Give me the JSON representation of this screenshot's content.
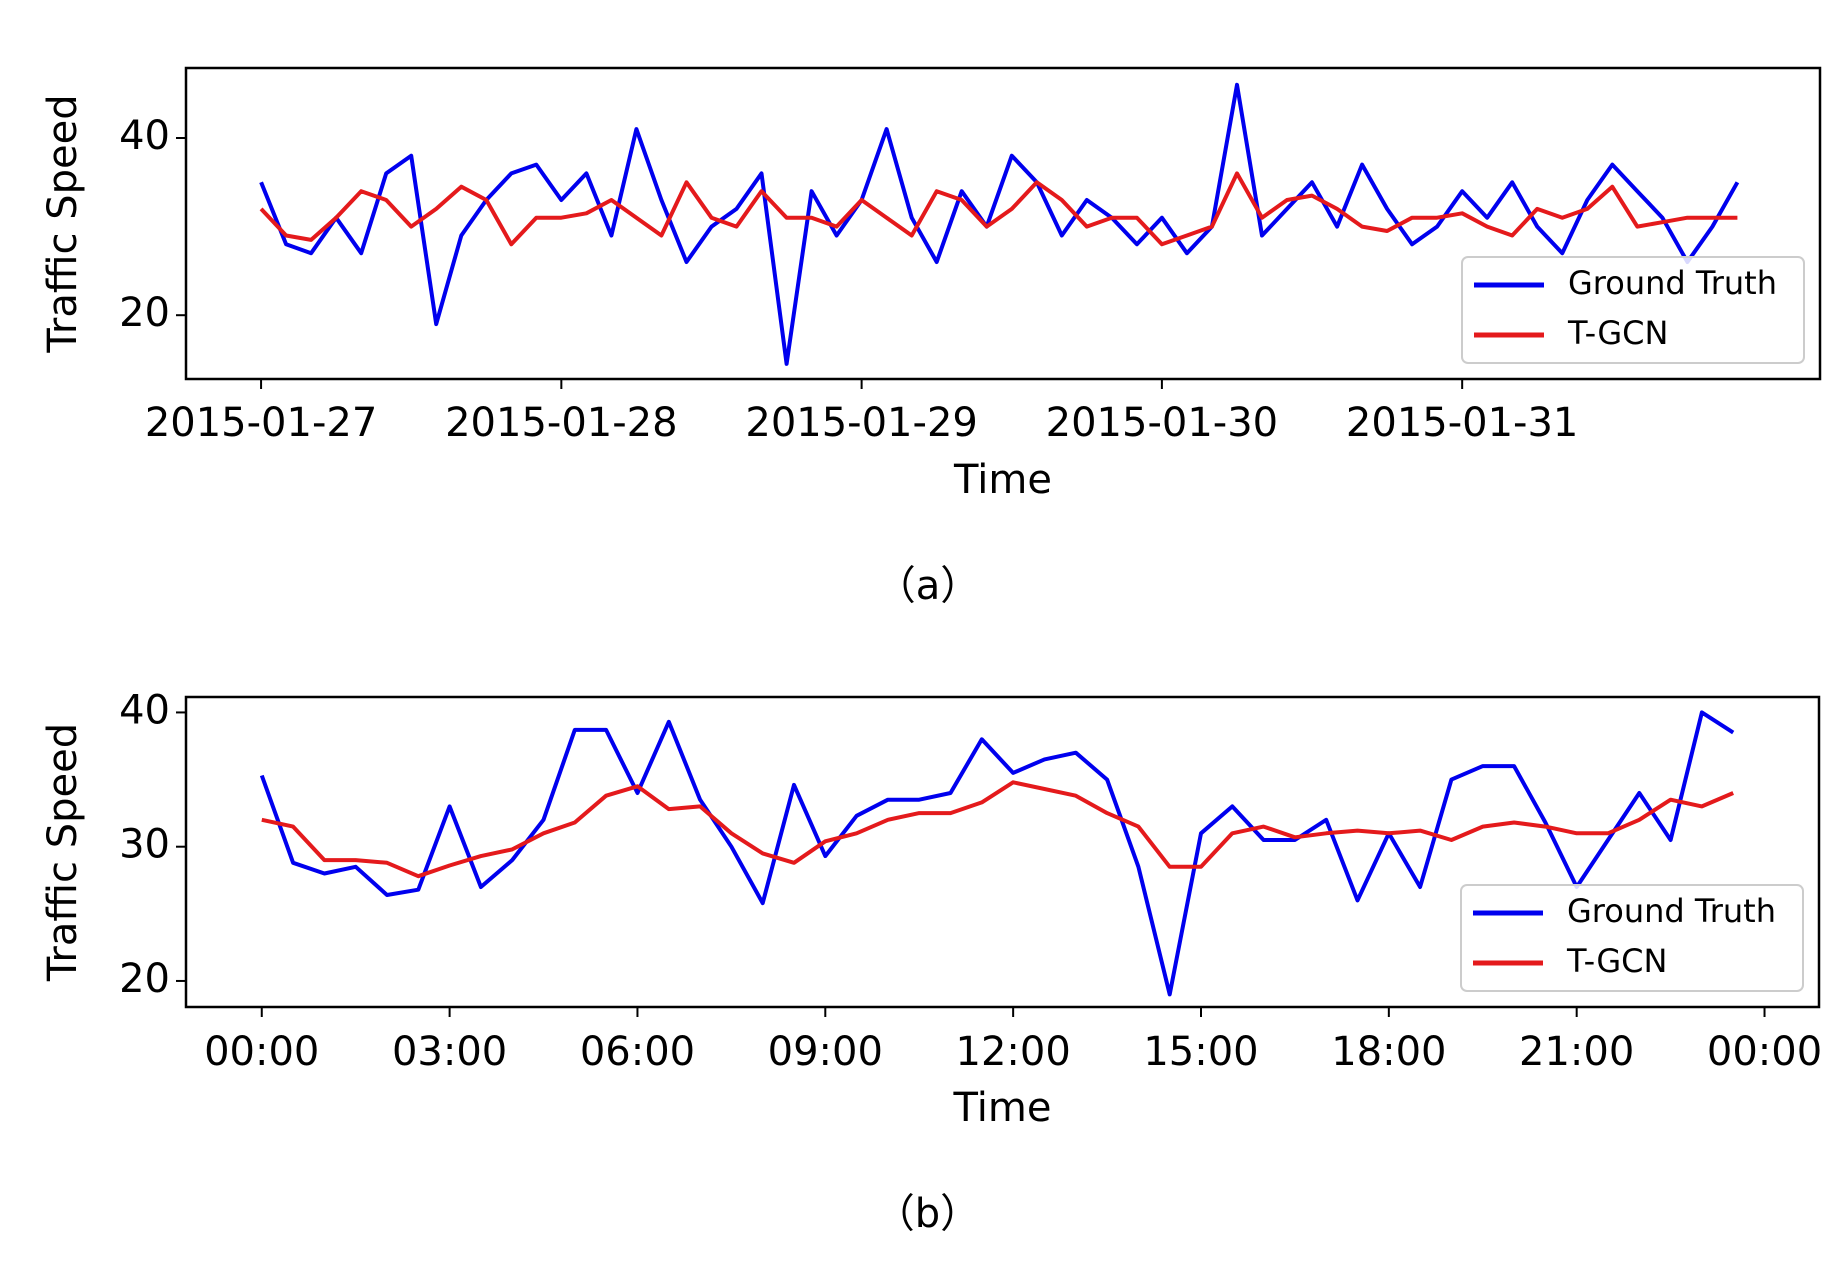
{
  "chart_data": [
    {
      "type": "line",
      "caption": "（a）",
      "xlabel": "Time",
      "ylabel": "Traffic Speed",
      "x": [
        0,
        2,
        4,
        6,
        8,
        10,
        12,
        14,
        16,
        18,
        20,
        22,
        24,
        26,
        28,
        30,
        32,
        34,
        36,
        38,
        40,
        42,
        44,
        46,
        48,
        50,
        52,
        54,
        56,
        58,
        60,
        62,
        64,
        66,
        68,
        70,
        72,
        74,
        76,
        78,
        80,
        82,
        84,
        86,
        88,
        90,
        92,
        94,
        96,
        98,
        100,
        102,
        104,
        106,
        108,
        110,
        112,
        114,
        116,
        118
      ],
      "series": [
        {
          "name": "Ground Truth",
          "color": "#0000ee",
          "values": [
            35,
            28,
            27,
            31,
            27,
            36,
            38,
            19,
            29,
            33,
            36,
            37,
            33,
            36,
            29,
            41,
            33,
            26,
            30,
            32,
            36,
            14.5,
            34,
            29,
            33,
            41,
            31,
            26,
            34,
            30,
            38,
            35,
            29,
            33,
            31,
            28,
            31,
            27,
            30,
            46,
            29,
            32,
            35,
            30,
            37,
            32,
            28,
            30,
            34,
            31,
            35,
            30,
            27,
            33,
            37,
            34,
            31,
            26,
            30,
            35
          ]
        },
        {
          "name": "T-GCN",
          "color": "#e41a1c",
          "values": [
            32,
            29,
            28.5,
            31,
            34,
            33,
            30,
            32,
            34.5,
            33,
            28,
            31,
            31,
            31.5,
            33,
            31,
            29,
            35,
            31,
            30,
            34,
            31,
            31,
            30,
            33,
            31,
            29,
            34,
            33,
            30,
            32,
            35,
            33,
            30,
            31,
            31,
            28,
            29,
            30,
            36,
            31,
            33,
            33.5,
            32,
            30,
            29.5,
            31,
            31,
            31.5,
            30,
            29,
            32,
            31,
            32,
            34.5,
            30,
            30.5,
            31,
            31,
            31
          ]
        }
      ],
      "xlim": [
        -6,
        124.6
      ],
      "xticks": [
        {
          "value": 0,
          "label": "2015-01-27"
        },
        {
          "value": 24,
          "label": "2015-01-28"
        },
        {
          "value": 48,
          "label": "2015-01-29"
        },
        {
          "value": 72,
          "label": "2015-01-30"
        },
        {
          "value": 96,
          "label": "2015-01-31"
        }
      ],
      "ylim": [
        12.8,
        47.9
      ],
      "yticks": [
        20,
        40
      ],
      "legend": "lower right"
    },
    {
      "type": "line",
      "caption": "（b）",
      "xlabel": "Time",
      "ylabel": "Traffic Speed",
      "x": [
        0,
        0.5,
        1,
        1.5,
        2,
        2.5,
        3,
        3.5,
        4,
        4.5,
        5,
        5.5,
        6,
        6.5,
        7,
        7.5,
        8,
        8.5,
        9,
        9.5,
        10,
        10.5,
        11,
        11.5,
        12,
        12.5,
        13,
        13.5,
        14,
        14.5,
        15,
        15.5,
        16,
        16.5,
        17,
        17.5,
        18,
        18.5,
        19,
        19.5,
        20,
        20.5,
        21,
        21.5,
        22,
        22.5,
        23,
        23.5
      ],
      "series": [
        {
          "name": "Ground Truth",
          "color": "#0000ee",
          "values": [
            35.3,
            28.8,
            28,
            28.5,
            26.4,
            26.8,
            33,
            27,
            29,
            32,
            38.7,
            38.7,
            34,
            39.3,
            33.5,
            30,
            25.8,
            34.6,
            29.3,
            32.3,
            33.5,
            33.5,
            34,
            38,
            35.5,
            36.5,
            37,
            35,
            28.5,
            19,
            31,
            33,
            30.5,
            30.5,
            32,
            26,
            31,
            27,
            35,
            36,
            36,
            31.8,
            27,
            30.5,
            34,
            30.5,
            40,
            38.5
          ]
        },
        {
          "name": "T-GCN",
          "color": "#e41a1c",
          "values": [
            32,
            31.5,
            29,
            29,
            28.8,
            27.8,
            28.6,
            29.3,
            29.8,
            31,
            31.8,
            33.8,
            34.5,
            32.8,
            33,
            31,
            29.5,
            28.8,
            30.4,
            31,
            32,
            32.5,
            32.5,
            33.3,
            34.8,
            34.3,
            33.8,
            32.5,
            31.5,
            28.5,
            28.5,
            31,
            31.5,
            30.7,
            31,
            31.2,
            31,
            31.2,
            30.5,
            31.5,
            31.8,
            31.5,
            31,
            31,
            32,
            33.5,
            33,
            34
          ]
        }
      ],
      "xlim": [
        -1.21,
        24.87
      ],
      "xticks": [
        {
          "value": 0,
          "label": "00:00"
        },
        {
          "value": 3,
          "label": "03:00"
        },
        {
          "value": 6,
          "label": "06:00"
        },
        {
          "value": 9,
          "label": "09:00"
        },
        {
          "value": 12,
          "label": "12:00"
        },
        {
          "value": 15,
          "label": "15:00"
        },
        {
          "value": 18,
          "label": "18:00"
        },
        {
          "value": 21,
          "label": "21:00"
        },
        {
          "value": 24,
          "label": "00:00"
        }
      ],
      "ylim": [
        18.06,
        41.15
      ],
      "yticks": [
        20,
        30,
        40
      ],
      "legend": "lower right"
    }
  ]
}
